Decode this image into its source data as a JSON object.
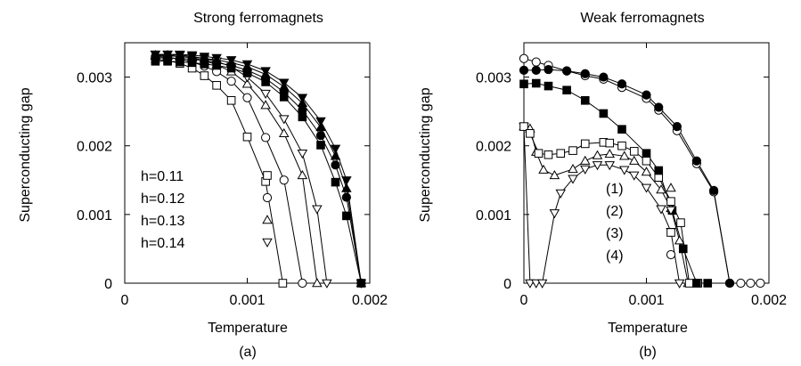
{
  "chart_data": [
    {
      "type": "line",
      "panel_label": "(a)",
      "title": "Strong ferromagnets",
      "xlabel": "Temperature",
      "ylabel": "Superconducting gap",
      "xlim": [
        0,
        0.002
      ],
      "ylim": [
        0,
        0.0035
      ],
      "x_ticks": [
        "0",
        "0.001",
        "0.002"
      ],
      "y_ticks": [
        "0",
        "0.001",
        "0.002",
        "0.003"
      ],
      "grid": false,
      "legend": "bottom-left",
      "series": [
        {
          "name": "h=0.11",
          "marker": "square-open",
          "points": [
            [
              0.00025,
              0.00326
            ],
            [
              0.00035,
              0.00324
            ],
            [
              0.00045,
              0.0032
            ],
            [
              0.00055,
              0.00313
            ],
            [
              0.00065,
              0.00302
            ],
            [
              0.00075,
              0.00288
            ],
            [
              0.00087,
              0.00266
            ],
            [
              0.001,
              0.00213
            ],
            [
              0.00115,
              0.00148
            ],
            [
              0.00129,
              0.0
            ]
          ]
        },
        {
          "name": "h=0.12",
          "marker": "circle-open",
          "points": [
            [
              0.00025,
              0.0033
            ],
            [
              0.00035,
              0.00329
            ],
            [
              0.00045,
              0.00326
            ],
            [
              0.00055,
              0.00322
            ],
            [
              0.00065,
              0.00316
            ],
            [
              0.00075,
              0.00308
            ],
            [
              0.00087,
              0.00294
            ],
            [
              0.001,
              0.0027
            ],
            [
              0.00115,
              0.00212
            ],
            [
              0.0013,
              0.0015
            ],
            [
              0.00145,
              0.0
            ]
          ]
        },
        {
          "name": "h=0.13",
          "marker": "triangle-up-open",
          "points": [
            [
              0.00025,
              0.00332
            ],
            [
              0.00035,
              0.00332
            ],
            [
              0.00045,
              0.0033
            ],
            [
              0.00055,
              0.00328
            ],
            [
              0.00065,
              0.00324
            ],
            [
              0.00075,
              0.00318
            ],
            [
              0.00087,
              0.00308
            ],
            [
              0.001,
              0.0029
            ],
            [
              0.00115,
              0.00259
            ],
            [
              0.0013,
              0.00218
            ],
            [
              0.00145,
              0.00157
            ],
            [
              0.00157,
              0.0
            ]
          ]
        },
        {
          "name": "h=0.14",
          "marker": "triangle-down-open",
          "points": [
            [
              0.00025,
              0.00333
            ],
            [
              0.00035,
              0.00333
            ],
            [
              0.00045,
              0.00332
            ],
            [
              0.00055,
              0.0033
            ],
            [
              0.00065,
              0.00327
            ],
            [
              0.00075,
              0.00323
            ],
            [
              0.00087,
              0.00315
            ],
            [
              0.001,
              0.003
            ],
            [
              0.00115,
              0.00276
            ],
            [
              0.0013,
              0.00239
            ],
            [
              0.00145,
              0.00189
            ],
            [
              0.00157,
              0.00108
            ],
            [
              0.00165,
              0.0
            ]
          ]
        },
        {
          "marker": "square-filled",
          "points": [
            [
              0.00025,
              0.00323
            ],
            [
              0.00035,
              0.00323
            ],
            [
              0.00045,
              0.00322
            ],
            [
              0.00055,
              0.00321
            ],
            [
              0.00065,
              0.00319
            ],
            [
              0.00075,
              0.00317
            ],
            [
              0.00087,
              0.00313
            ],
            [
              0.001,
              0.00306
            ],
            [
              0.00115,
              0.00293
            ],
            [
              0.0013,
              0.00271
            ],
            [
              0.00145,
              0.00242
            ],
            [
              0.0016,
              0.00201
            ],
            [
              0.00172,
              0.00147
            ],
            [
              0.00181,
              0.00098
            ],
            [
              0.00193,
              0.0
            ]
          ]
        },
        {
          "marker": "circle-filled",
          "points": [
            [
              0.00025,
              0.00328
            ],
            [
              0.00035,
              0.00328
            ],
            [
              0.00045,
              0.00327
            ],
            [
              0.00055,
              0.00326
            ],
            [
              0.00065,
              0.00324
            ],
            [
              0.00075,
              0.00321
            ],
            [
              0.00087,
              0.00317
            ],
            [
              0.001,
              0.0031
            ],
            [
              0.00115,
              0.00298
            ],
            [
              0.0013,
              0.00278
            ],
            [
              0.00145,
              0.00252
            ],
            [
              0.0016,
              0.00215
            ],
            [
              0.00172,
              0.00172
            ],
            [
              0.00181,
              0.00125
            ],
            [
              0.00193,
              0.0
            ]
          ]
        },
        {
          "marker": "triangle-up-filled",
          "points": [
            [
              0.00025,
              0.00331
            ],
            [
              0.00035,
              0.00331
            ],
            [
              0.00045,
              0.0033
            ],
            [
              0.00055,
              0.00329
            ],
            [
              0.00065,
              0.00327
            ],
            [
              0.00075,
              0.00325
            ],
            [
              0.00087,
              0.00321
            ],
            [
              0.001,
              0.00315
            ],
            [
              0.00115,
              0.00304
            ],
            [
              0.0013,
              0.00286
            ],
            [
              0.00145,
              0.00262
            ],
            [
              0.0016,
              0.00227
            ],
            [
              0.00172,
              0.00185
            ],
            [
              0.00181,
              0.00138
            ],
            [
              0.00193,
              0.0
            ]
          ]
        },
        {
          "marker": "triangle-down-filled",
          "points": [
            [
              0.00025,
              0.00333
            ],
            [
              0.00035,
              0.00333
            ],
            [
              0.00045,
              0.00333
            ],
            [
              0.00055,
              0.00332
            ],
            [
              0.00065,
              0.0033
            ],
            [
              0.00075,
              0.00328
            ],
            [
              0.00087,
              0.00325
            ],
            [
              0.001,
              0.00319
            ],
            [
              0.00115,
              0.00309
            ],
            [
              0.0013,
              0.00292
            ],
            [
              0.00145,
              0.0027
            ],
            [
              0.0016,
              0.00236
            ],
            [
              0.00172,
              0.00196
            ],
            [
              0.00181,
              0.0015
            ],
            [
              0.00193,
              0.0
            ]
          ]
        }
      ]
    },
    {
      "type": "line",
      "panel_label": "(b)",
      "title": "Weak ferromagnets",
      "xlabel": "Temperature",
      "ylabel": "Superconducting gap",
      "xlim": [
        0,
        0.002
      ],
      "ylim": [
        0,
        0.0035
      ],
      "x_ticks": [
        "0",
        "0.001",
        "0.002"
      ],
      "y_ticks": [
        "0",
        "0.001",
        "0.002",
        "0.003"
      ],
      "grid": false,
      "legend": "bottom-center",
      "series": [
        {
          "name": "(1)",
          "marker": "triangle-up-open",
          "points": [
            [
              0.0,
              0.00228
            ],
            [
              5e-05,
              0.00225
            ],
            [
              0.0001,
              0.00191
            ],
            [
              0.00016,
              0.00165
            ],
            [
              0.00025,
              0.00157
            ],
            [
              0.0004,
              0.00166
            ],
            [
              0.0005,
              0.00178
            ],
            [
              0.0006,
              0.00186
            ],
            [
              0.0007,
              0.00188
            ],
            [
              0.00082,
              0.00185
            ],
            [
              0.0009,
              0.00178
            ],
            [
              0.001,
              0.00162
            ],
            [
              0.00112,
              0.00136
            ],
            [
              0.0012,
              0.00109
            ],
            [
              0.00127,
              0.00062
            ],
            [
              0.00134,
              0.0
            ],
            [
              0.0014,
              0.0
            ]
          ]
        },
        {
          "name": "(2)",
          "marker": "triangle-down-open",
          "points": [
            [
              0.0,
              0.00228
            ],
            [
              5e-05,
              0.0
            ],
            [
              0.0001,
              0.0
            ],
            [
              0.00015,
              0.0
            ],
            [
              0.00025,
              0.00102
            ],
            [
              0.0003,
              0.00131
            ],
            [
              0.0004,
              0.00152
            ],
            [
              0.0005,
              0.00166
            ],
            [
              0.0006,
              0.00172
            ],
            [
              0.0007,
              0.00172
            ],
            [
              0.00082,
              0.00165
            ],
            [
              0.0009,
              0.00157
            ],
            [
              0.001,
              0.00139
            ],
            [
              0.00112,
              0.00108
            ],
            [
              0.0012,
              0.00075
            ],
            [
              0.00127,
              0.0
            ]
          ]
        },
        {
          "name": "(3)",
          "marker": "square-open",
          "points": [
            [
              0.0,
              0.00228
            ],
            [
              5e-05,
              0.00218
            ],
            [
              0.00012,
              0.00189
            ],
            [
              0.0002,
              0.00187
            ],
            [
              0.0003,
              0.00189
            ],
            [
              0.0004,
              0.00193
            ],
            [
              0.0005,
              0.00203
            ],
            [
              0.00065,
              0.00205
            ],
            [
              0.0007,
              0.00204
            ],
            [
              0.0008,
              0.002
            ],
            [
              0.0009,
              0.00192
            ],
            [
              0.001,
              0.00178
            ],
            [
              0.0011,
              0.00154
            ],
            [
              0.0012,
              0.00119
            ],
            [
              0.00128,
              0.00088
            ],
            [
              0.00135,
              0.0
            ],
            [
              0.00142,
              0.0
            ]
          ]
        },
        {
          "name": "(4)",
          "marker": "circle-open",
          "points": [
            [
              0.0,
              0.00327
            ],
            [
              0.0001,
              0.00322
            ],
            [
              0.0002,
              0.00317
            ],
            [
              0.00035,
              0.00309
            ],
            [
              0.0005,
              0.00302
            ],
            [
              0.00065,
              0.00297
            ],
            [
              0.0008,
              0.00285
            ],
            [
              0.001,
              0.00269
            ],
            [
              0.0011,
              0.00252
            ],
            [
              0.00125,
              0.00222
            ],
            [
              0.00141,
              0.00174
            ],
            [
              0.00155,
              0.00133
            ],
            [
              0.00168,
              0.0
            ],
            [
              0.00177,
              0.0
            ],
            [
              0.00185,
              0.0
            ],
            [
              0.00193,
              0.0
            ]
          ]
        },
        {
          "marker": "circle-filled",
          "points": [
            [
              0.0,
              0.0031
            ],
            [
              0.0001,
              0.0031
            ],
            [
              0.0002,
              0.00311
            ],
            [
              0.00035,
              0.00309
            ],
            [
              0.0005,
              0.00305
            ],
            [
              0.00065,
              0.003
            ],
            [
              0.0008,
              0.0029
            ],
            [
              0.001,
              0.00274
            ],
            [
              0.0011,
              0.00256
            ],
            [
              0.00125,
              0.00228
            ],
            [
              0.00141,
              0.00178
            ],
            [
              0.00155,
              0.00135
            ],
            [
              0.00168,
              0.0
            ]
          ]
        },
        {
          "marker": "square-filled",
          "points": [
            [
              0.0,
              0.0029
            ],
            [
              0.0001,
              0.00291
            ],
            [
              0.0002,
              0.00287
            ],
            [
              0.00035,
              0.00281
            ],
            [
              0.0005,
              0.00266
            ],
            [
              0.00065,
              0.00247
            ],
            [
              0.0008,
              0.00224
            ],
            [
              0.001,
              0.00189
            ],
            [
              0.0011,
              0.00164
            ],
            [
              0.00121,
              0.00106
            ],
            [
              0.0013,
              0.0005
            ],
            [
              0.00141,
              0.0
            ],
            [
              0.0015,
              0.0
            ]
          ]
        }
      ]
    }
  ]
}
